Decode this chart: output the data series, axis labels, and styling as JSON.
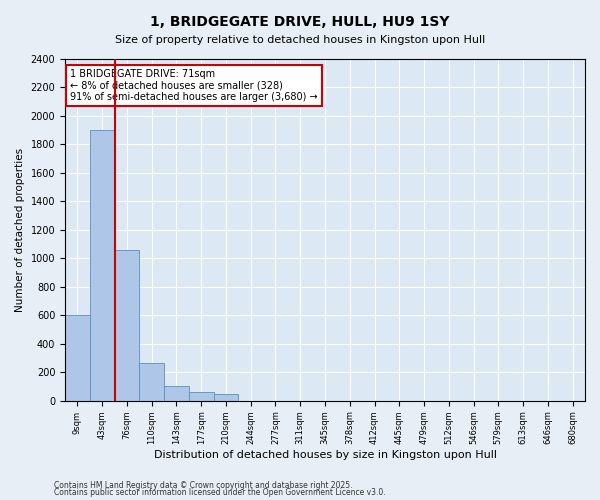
{
  "title": "1, BRIDGEGATE DRIVE, HULL, HU9 1SY",
  "subtitle": "Size of property relative to detached houses in Kingston upon Hull",
  "xlabel": "Distribution of detached houses by size in Kingston upon Hull",
  "ylabel": "Number of detached properties",
  "footnote1": "Contains HM Land Registry data © Crown copyright and database right 2025.",
  "footnote2": "Contains public sector information licensed under the Open Government Licence v3.0.",
  "annotation_title": "1 BRIDGEGATE DRIVE: 71sqm",
  "annotation_line1": "← 8% of detached houses are smaller (328)",
  "annotation_line2": "91% of semi-detached houses are larger (3,680) →",
  "bar_categories": [
    "9sqm",
    "43sqm",
    "76sqm",
    "110sqm",
    "143sqm",
    "177sqm",
    "210sqm",
    "244sqm",
    "277sqm",
    "311sqm",
    "345sqm",
    "378sqm",
    "412sqm",
    "445sqm",
    "479sqm",
    "512sqm",
    "546sqm",
    "579sqm",
    "613sqm",
    "646sqm",
    "680sqm"
  ],
  "bar_values": [
    600,
    1900,
    1060,
    265,
    100,
    60,
    50,
    0,
    0,
    0,
    0,
    0,
    0,
    0,
    0,
    0,
    0,
    0,
    0,
    0,
    0
  ],
  "bar_color": "#aec6e8",
  "bar_edge_color": "#5a8fc0",
  "vline_color": "#cc0000",
  "annotation_box_color": "#cc0000",
  "fig_background_color": "#e8eef5",
  "ax_background_color": "#dce9f5",
  "ylim": [
    0,
    2400
  ],
  "yticks": [
    0,
    200,
    400,
    600,
    800,
    1000,
    1200,
    1400,
    1600,
    1800,
    2000,
    2200,
    2400
  ]
}
